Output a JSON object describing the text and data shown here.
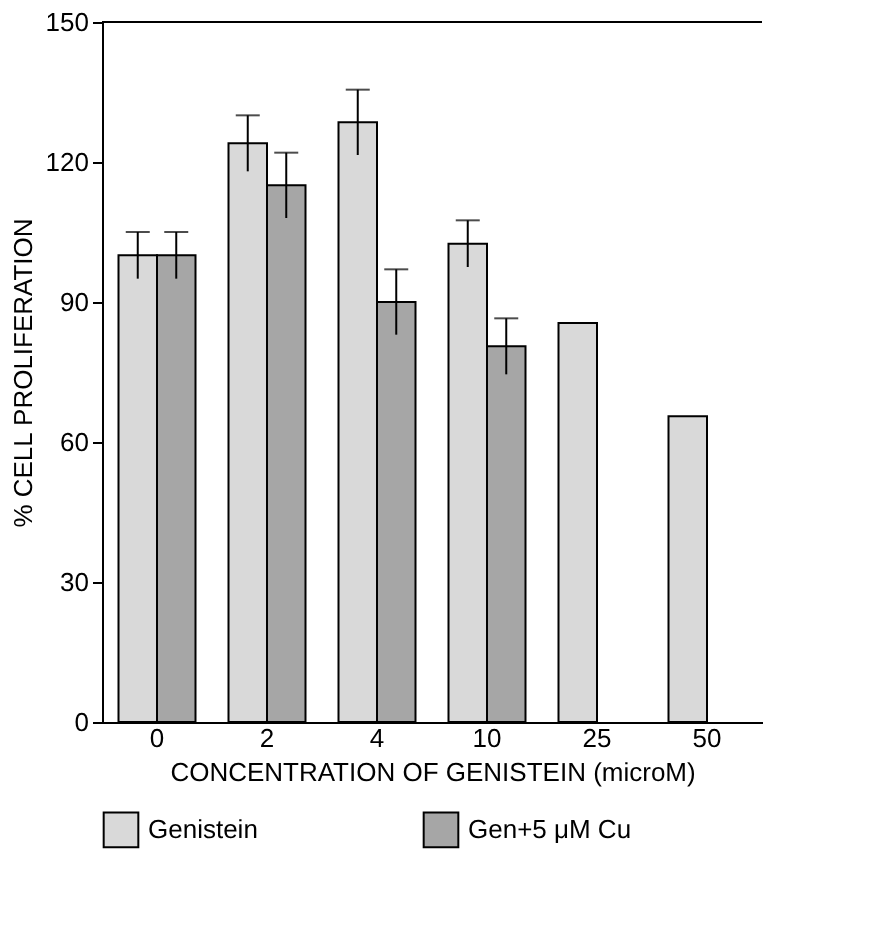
{
  "chart_data": {
    "type": "bar",
    "xlabel": "CONCENTRATION OF GENISTEIN (microM)",
    "ylabel": "% CELL PROLIFERATION",
    "categories": [
      "0",
      "2",
      "4",
      "10",
      "25",
      "50"
    ],
    "series": [
      {
        "name": "Genistein",
        "color": "#d9d9d9",
        "values": [
          100,
          124,
          128.5,
          102.5,
          85.5,
          65.5
        ],
        "errors": [
          5,
          6,
          7,
          5,
          null,
          null
        ]
      },
      {
        "name": "Gen+5 μM Cu",
        "color": "#a6a6a6",
        "values": [
          100,
          115,
          90,
          80.5,
          null,
          null
        ],
        "errors": [
          5,
          7,
          7,
          6,
          null,
          null
        ]
      }
    ],
    "ylim": [
      0,
      150
    ],
    "yticks": [
      0,
      30,
      60,
      90,
      120,
      150
    ],
    "grid": false,
    "legend": "bottom"
  }
}
